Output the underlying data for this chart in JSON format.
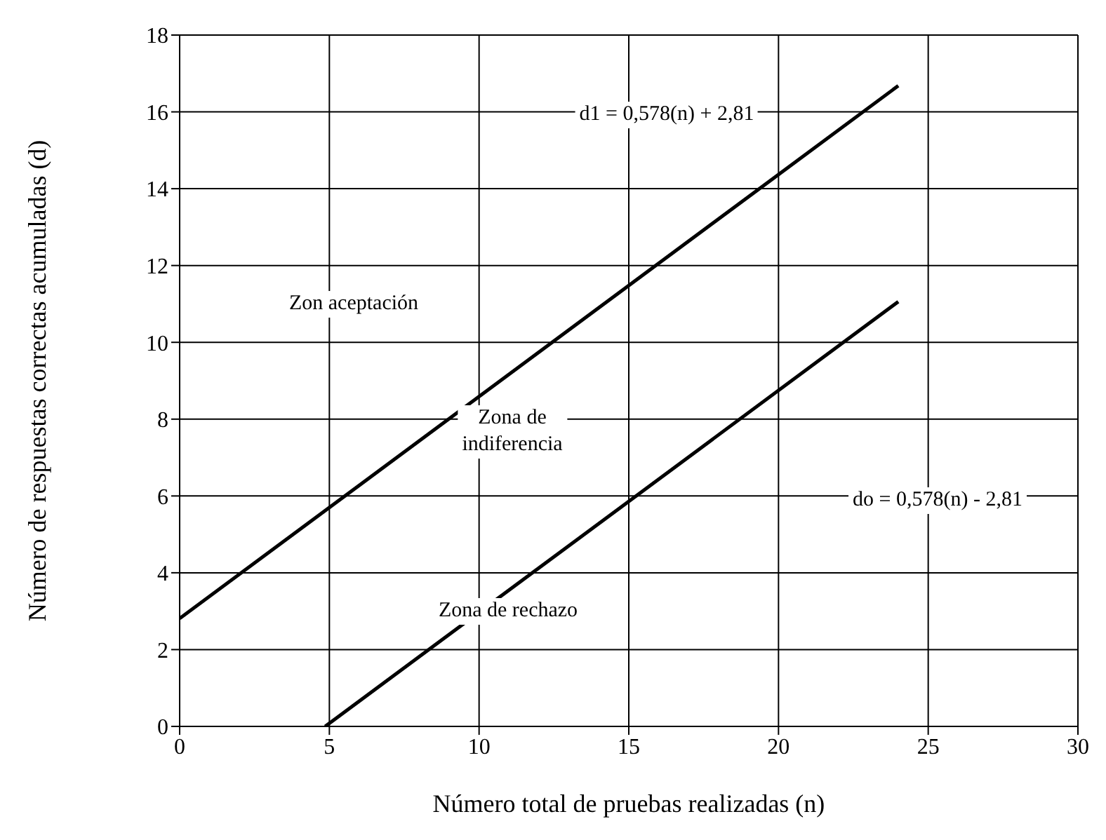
{
  "chart_data": {
    "type": "line",
    "xlabel": "Número total de pruebas realizadas (n)",
    "ylabel": "Número de respuestas correctas acumuladas (d)",
    "series": [
      {
        "color": "#000000",
        "x": [
          0,
          24
        ],
        "values": [
          2.81,
          16.68
        ]
      },
      {
        "color": "#000000",
        "x": [
          4.86,
          24
        ],
        "values": [
          0,
          11.06
        ]
      }
    ],
    "xlim": [
      0,
      30
    ],
    "xticks": [
      0,
      5,
      10,
      15,
      20,
      25,
      30
    ],
    "ylim": [
      0,
      18
    ],
    "yticks": [
      0,
      2,
      4,
      6,
      8,
      10,
      12,
      14,
      16,
      18
    ],
    "grid": true,
    "marker": "none",
    "line_style": "solid",
    "annotations": [
      "d1 = 0,578(n) + 2,81",
      "Zon aceptación",
      "Zona de\nindiferencia",
      "do = 0,578(n) - 2,81",
      "Zona de rechazo"
    ]
  }
}
